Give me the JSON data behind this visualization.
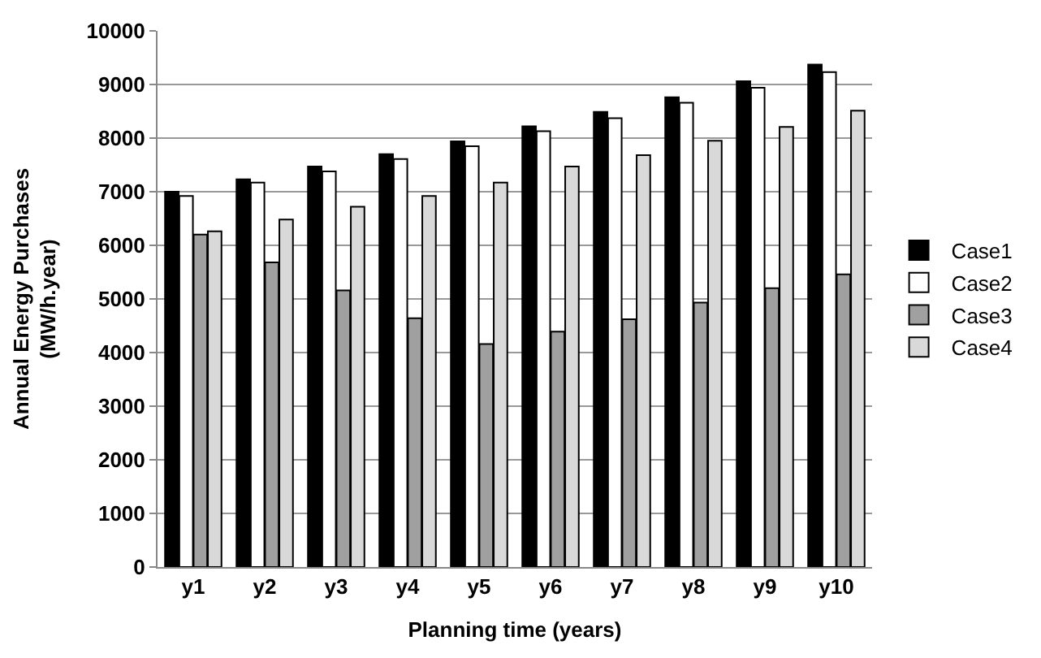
{
  "chart_data": {
    "type": "bar",
    "xlabel": "Planning time (years)",
    "ylabel": "Annual Energy Purchases\n(MW/h.year)",
    "categories": [
      "y1",
      "y2",
      "y3",
      "y4",
      "y5",
      "y6",
      "y7",
      "y8",
      "y9",
      "y10"
    ],
    "series": [
      {
        "name": "Case1",
        "color": "#000000",
        "values": [
          7000,
          7230,
          7470,
          7700,
          7940,
          8220,
          8490,
          8760,
          9060,
          9370
        ]
      },
      {
        "name": "Case2",
        "color": "#ffffff",
        "values": [
          6920,
          7170,
          7380,
          7610,
          7850,
          8130,
          8370,
          8660,
          8940,
          9230
        ]
      },
      {
        "name": "Case3",
        "color": "#a0a0a0",
        "values": [
          6200,
          5680,
          5160,
          4640,
          4160,
          4390,
          4620,
          4930,
          5200,
          5460
        ]
      },
      {
        "name": "Case4",
        "color": "#d9d9d9",
        "values": [
          6260,
          6480,
          6720,
          6920,
          7170,
          7470,
          7680,
          7950,
          8210,
          8510
        ]
      }
    ],
    "ylim": [
      0,
      10000
    ],
    "yticks": [
      0,
      1000,
      2000,
      3000,
      4000,
      5000,
      6000,
      7000,
      8000,
      9000,
      10000
    ],
    "grid": "y",
    "legend": "right"
  }
}
